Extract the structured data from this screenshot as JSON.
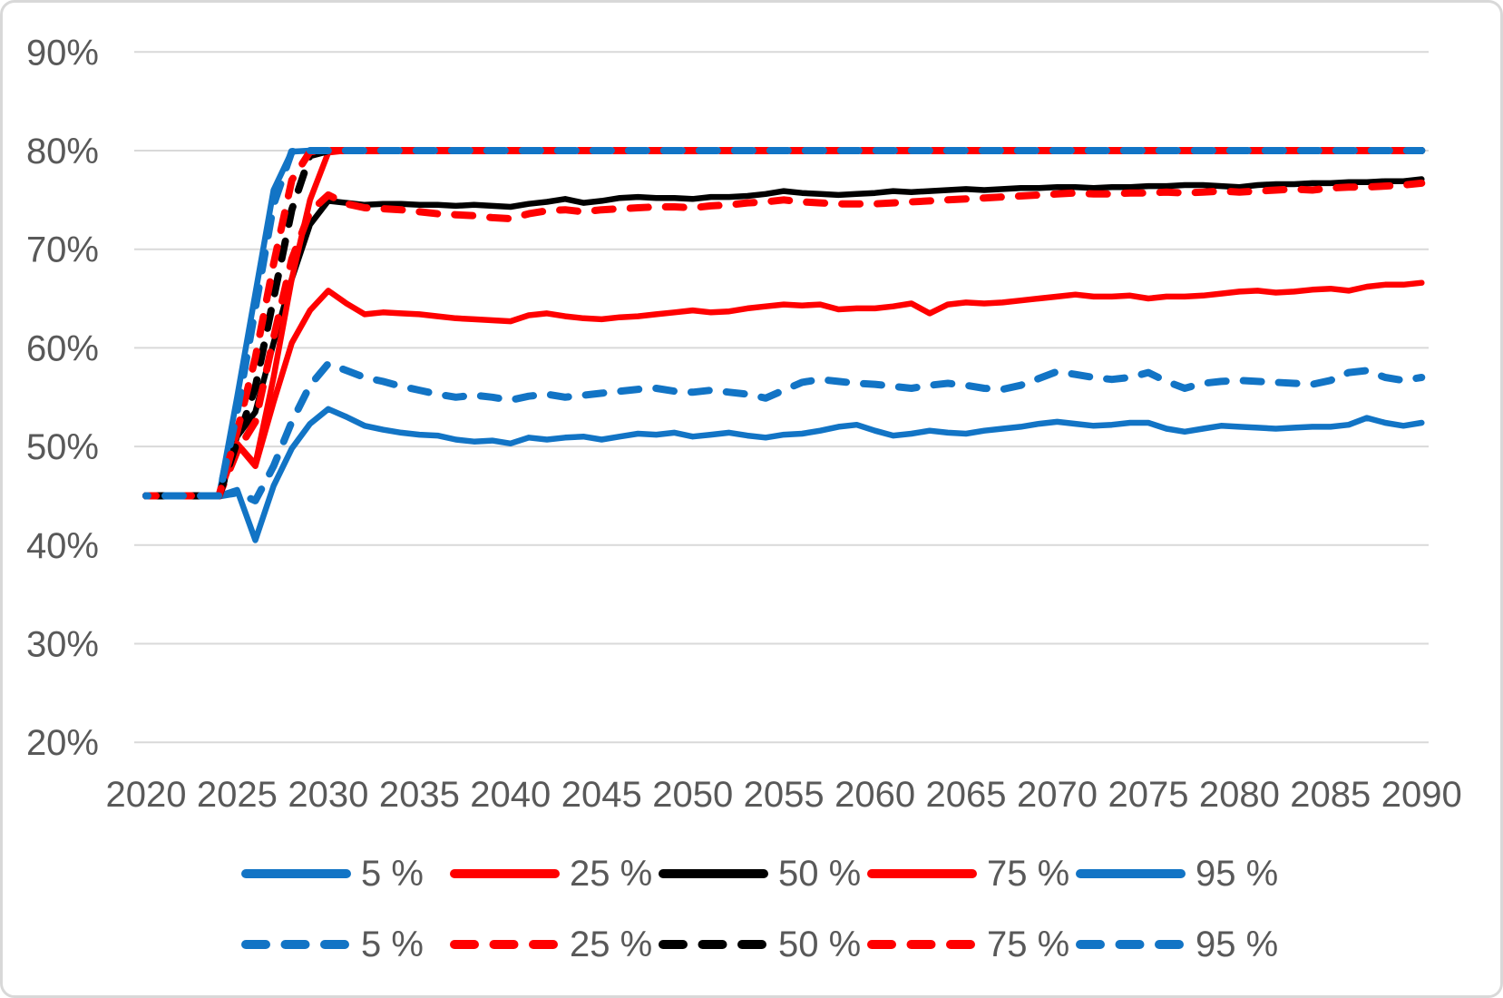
{
  "figure": {
    "background": "#ffffff",
    "border_color": "#d8d8d8",
    "label_color": "#595959",
    "gridline_color": "#d9d9d9"
  },
  "axes": {
    "y": {
      "tick_labels": [
        "90%",
        "80%",
        "70%",
        "60%",
        "50%",
        "40%",
        "30%",
        "20%"
      ],
      "tick_values": [
        90,
        80,
        70,
        60,
        50,
        40,
        30,
        20
      ],
      "min": 20,
      "max": 90
    },
    "x": {
      "tick_labels": [
        "2020",
        "2025",
        "2030",
        "2035",
        "2040",
        "2045",
        "2050",
        "2055",
        "2060",
        "2065",
        "2070",
        "2075",
        "2080",
        "2085",
        "2090"
      ],
      "tick_values": [
        2020,
        2025,
        2030,
        2035,
        2040,
        2045,
        2050,
        2055,
        2060,
        2065,
        2070,
        2075,
        2080,
        2085,
        2090
      ],
      "min": 2020,
      "max": 2090
    }
  },
  "chart_data": {
    "type": "line",
    "title": "",
    "xlabel": "",
    "ylabel": "",
    "xlim": [
      2020,
      2090
    ],
    "ylim": [
      20,
      90
    ],
    "grid": "horizontal",
    "legend_position": "bottom-two-rows",
    "x": [
      2020,
      2021,
      2022,
      2023,
      2024,
      2025,
      2026,
      2027,
      2028,
      2029,
      2030,
      2031,
      2032,
      2033,
      2034,
      2035,
      2036,
      2037,
      2038,
      2039,
      2040,
      2041,
      2042,
      2043,
      2044,
      2045,
      2046,
      2047,
      2048,
      2049,
      2050,
      2051,
      2052,
      2053,
      2054,
      2055,
      2056,
      2057,
      2058,
      2059,
      2060,
      2061,
      2062,
      2063,
      2064,
      2065,
      2066,
      2067,
      2068,
      2069,
      2070,
      2071,
      2072,
      2073,
      2074,
      2075,
      2076,
      2077,
      2078,
      2079,
      2080,
      2081,
      2082,
      2083,
      2084,
      2085,
      2086,
      2087,
      2088,
      2089,
      2090
    ],
    "series": [
      {
        "id": "solid-5",
        "legend_label": "5 %",
        "color": "#1274c5",
        "dash": false,
        "values": [
          45,
          45,
          45,
          45,
          45,
          45.6,
          40.5,
          46.0,
          49.8,
          52.3,
          53.8,
          53.0,
          52.1,
          51.7,
          51.4,
          51.2,
          51.1,
          50.7,
          50.5,
          50.6,
          50.3,
          50.9,
          50.7,
          50.9,
          51.0,
          50.7,
          51.0,
          51.3,
          51.2,
          51.4,
          51.0,
          51.2,
          51.4,
          51.1,
          50.9,
          51.2,
          51.3,
          51.6,
          52.0,
          52.2,
          51.6,
          51.1,
          51.3,
          51.6,
          51.4,
          51.3,
          51.6,
          51.8,
          52.0,
          52.3,
          52.5,
          52.3,
          52.1,
          52.2,
          52.4,
          52.4,
          51.8,
          51.5,
          51.8,
          52.1,
          52.0,
          51.9,
          51.8,
          51.9,
          52.0,
          52.0,
          52.2,
          52.9,
          52.4,
          52.1,
          52.4
        ]
      },
      {
        "id": "solid-25",
        "legend_label": "25 %",
        "color": "#ff0000",
        "dash": false,
        "values": [
          45,
          45,
          45,
          45,
          45,
          50.2,
          48.0,
          54.5,
          60.5,
          63.8,
          65.8,
          64.5,
          63.4,
          63.6,
          63.5,
          63.4,
          63.2,
          63.0,
          62.9,
          62.8,
          62.7,
          63.3,
          63.5,
          63.2,
          63.0,
          62.9,
          63.1,
          63.2,
          63.4,
          63.6,
          63.8,
          63.6,
          63.7,
          64.0,
          64.2,
          64.4,
          64.3,
          64.4,
          63.9,
          64.0,
          64.0,
          64.2,
          64.5,
          63.5,
          64.4,
          64.6,
          64.5,
          64.6,
          64.8,
          65.0,
          65.2,
          65.4,
          65.2,
          65.2,
          65.3,
          65.0,
          65.2,
          65.2,
          65.3,
          65.5,
          65.7,
          65.8,
          65.6,
          65.7,
          65.9,
          66.0,
          65.8,
          66.2,
          66.4,
          66.4,
          66.6
        ]
      },
      {
        "id": "solid-50",
        "legend_label": "50 %",
        "color": "#000000",
        "dash": false,
        "values": [
          45,
          45,
          45,
          45,
          45,
          51.0,
          53.5,
          60.5,
          67.0,
          72.5,
          74.9,
          74.7,
          74.5,
          74.6,
          74.6,
          74.5,
          74.5,
          74.4,
          74.5,
          74.4,
          74.3,
          74.6,
          74.8,
          75.1,
          74.7,
          74.9,
          75.2,
          75.3,
          75.2,
          75.2,
          75.1,
          75.3,
          75.3,
          75.4,
          75.6,
          75.9,
          75.7,
          75.6,
          75.5,
          75.6,
          75.7,
          75.9,
          75.8,
          75.9,
          76.0,
          76.1,
          76.0,
          76.1,
          76.2,
          76.2,
          76.3,
          76.3,
          76.2,
          76.3,
          76.3,
          76.4,
          76.4,
          76.5,
          76.5,
          76.4,
          76.3,
          76.5,
          76.6,
          76.6,
          76.7,
          76.7,
          76.8,
          76.8,
          76.9,
          76.9,
          77.1
        ]
      },
      {
        "id": "solid-75",
        "legend_label": "75 %",
        "color": "#ff0000",
        "dash": false,
        "values": [
          45,
          45,
          45,
          45,
          45,
          50.3,
          48.2,
          57.0,
          67.0,
          75.0,
          79.8,
          80,
          80,
          80,
          80,
          80,
          80,
          80,
          80,
          80,
          80,
          80,
          80,
          80,
          80,
          80,
          80,
          80,
          80,
          80,
          80,
          80,
          80,
          80,
          80,
          80,
          80,
          80,
          80,
          80,
          80,
          80,
          80,
          80,
          80,
          80,
          80,
          80,
          80,
          80,
          80,
          80,
          80,
          80,
          80,
          80,
          80,
          80,
          80,
          80,
          80,
          80,
          80,
          80,
          80,
          80,
          80,
          80,
          80,
          80,
          80
        ]
      },
      {
        "id": "solid-95",
        "legend_label": "95 %",
        "color": "#1274c5",
        "dash": false,
        "values": [
          45,
          45,
          45,
          45,
          45,
          55.0,
          65.5,
          76.0,
          79.9,
          80,
          80,
          80,
          80,
          80,
          80,
          80,
          80,
          80,
          80,
          80,
          80,
          80,
          80,
          80,
          80,
          80,
          80,
          80,
          80,
          80,
          80,
          80,
          80,
          80,
          80,
          80,
          80,
          80,
          80,
          80,
          80,
          80,
          80,
          80,
          80,
          80,
          80,
          80,
          80,
          80,
          80,
          80,
          80,
          80,
          80,
          80,
          80,
          80,
          80,
          80,
          80,
          80,
          80,
          80,
          80,
          80,
          80,
          80,
          80,
          80,
          80
        ]
      },
      {
        "id": "dashed-5",
        "legend_label": "5 %",
        "color": "#1274c5",
        "dash": true,
        "values": [
          45,
          45,
          45,
          45,
          45,
          45.3,
          44.5,
          48.0,
          52.5,
          56.2,
          58.4,
          57.7,
          57.0,
          56.6,
          56.1,
          55.7,
          55.3,
          55.0,
          55.2,
          55.0,
          54.7,
          55.1,
          55.3,
          55.0,
          55.2,
          55.4,
          55.6,
          55.8,
          55.9,
          55.6,
          55.5,
          55.7,
          55.5,
          55.3,
          54.9,
          55.7,
          56.5,
          56.8,
          56.6,
          56.4,
          56.3,
          56.1,
          55.9,
          56.2,
          56.4,
          56.2,
          55.9,
          55.8,
          56.2,
          56.9,
          57.6,
          57.3,
          57.0,
          56.8,
          57.0,
          57.5,
          56.6,
          55.9,
          56.4,
          56.6,
          56.7,
          56.6,
          56.5,
          56.4,
          56.3,
          56.7,
          57.5,
          57.7,
          57.0,
          56.7,
          57.0
        ]
      },
      {
        "id": "dashed-25",
        "legend_label": "25 %",
        "color": "#ff0000",
        "dash": true,
        "values": [
          45,
          45,
          45,
          45,
          45,
          49.5,
          52.5,
          61.0,
          69.0,
          73.8,
          75.5,
          74.6,
          74.2,
          74.1,
          74.0,
          73.8,
          73.6,
          73.5,
          73.4,
          73.2,
          73.1,
          73.6,
          73.9,
          74.0,
          73.8,
          74.0,
          74.1,
          74.2,
          74.3,
          74.3,
          74.2,
          74.4,
          74.5,
          74.7,
          74.8,
          75.0,
          74.8,
          74.7,
          74.6,
          74.6,
          74.6,
          74.7,
          74.8,
          74.9,
          75.0,
          75.1,
          75.2,
          75.3,
          75.4,
          75.5,
          75.6,
          75.7,
          75.6,
          75.6,
          75.7,
          75.7,
          75.8,
          75.7,
          75.8,
          75.9,
          75.8,
          75.9,
          76.0,
          76.1,
          76.0,
          76.2,
          76.3,
          76.3,
          76.4,
          76.5,
          76.7
        ]
      },
      {
        "id": "dashed-50",
        "legend_label": "50 %",
        "color": "#000000",
        "dash": true,
        "values": [
          45,
          45,
          45,
          45,
          45,
          50.5,
          56.0,
          65.0,
          74.0,
          79.5,
          80,
          80,
          80,
          80,
          80,
          80,
          80,
          80,
          80,
          80,
          80,
          80,
          80,
          80,
          80,
          80,
          80,
          80,
          80,
          80,
          80,
          80,
          80,
          80,
          80,
          80,
          80,
          80,
          80,
          80,
          80,
          80,
          80,
          80,
          80,
          80,
          80,
          80,
          80,
          80,
          80,
          80,
          80,
          80,
          80,
          80,
          80,
          80,
          80,
          80,
          80,
          80,
          80,
          80,
          80,
          80,
          80,
          80,
          80,
          80,
          80
        ]
      },
      {
        "id": "dashed-75",
        "legend_label": "75 %",
        "color": "#ff0000",
        "dash": true,
        "values": [
          45,
          45,
          45,
          45,
          45,
          51.5,
          59.0,
          68.5,
          77.0,
          79.9,
          80,
          80,
          80,
          80,
          80,
          80,
          80,
          80,
          80,
          80,
          80,
          80,
          80,
          80,
          80,
          80,
          80,
          80,
          80,
          80,
          80,
          80,
          80,
          80,
          80,
          80,
          80,
          80,
          80,
          80,
          80,
          80,
          80,
          80,
          80,
          80,
          80,
          80,
          80,
          80,
          80,
          80,
          80,
          80,
          80,
          80,
          80,
          80,
          80,
          80,
          80,
          80,
          80,
          80,
          80,
          80,
          80,
          80,
          80,
          80,
          80
        ]
      },
      {
        "id": "dashed-95",
        "legend_label": "95 %",
        "color": "#1274c5",
        "dash": true,
        "values": [
          45,
          45,
          45,
          45,
          45,
          53.5,
          64.0,
          74.5,
          79.9,
          80,
          80,
          80,
          80,
          80,
          80,
          80,
          80,
          80,
          80,
          80,
          80,
          80,
          80,
          80,
          80,
          80,
          80,
          80,
          80,
          80,
          80,
          80,
          80,
          80,
          80,
          80,
          80,
          80,
          80,
          80,
          80,
          80,
          80,
          80,
          80,
          80,
          80,
          80,
          80,
          80,
          80,
          80,
          80,
          80,
          80,
          80,
          80,
          80,
          80,
          80,
          80,
          80,
          80,
          80,
          80,
          80,
          80,
          80,
          80,
          80,
          80
        ]
      }
    ]
  },
  "legend": {
    "rows": [
      {
        "style": "solid",
        "items": [
          {
            "label": "5 %",
            "color": "#1274c5"
          },
          {
            "label": "25 %",
            "color": "#ff0000"
          },
          {
            "label": "50 %",
            "color": "#000000"
          },
          {
            "label": "75 %",
            "color": "#ff0000"
          },
          {
            "label": "95 %",
            "color": "#1274c5"
          }
        ]
      },
      {
        "style": "dashed",
        "items": [
          {
            "label": "5 %",
            "color": "#1274c5"
          },
          {
            "label": "25 %",
            "color": "#ff0000"
          },
          {
            "label": "50 %",
            "color": "#000000"
          },
          {
            "label": "75 %",
            "color": "#ff0000"
          },
          {
            "label": "95 %",
            "color": "#1274c5"
          }
        ]
      }
    ]
  }
}
